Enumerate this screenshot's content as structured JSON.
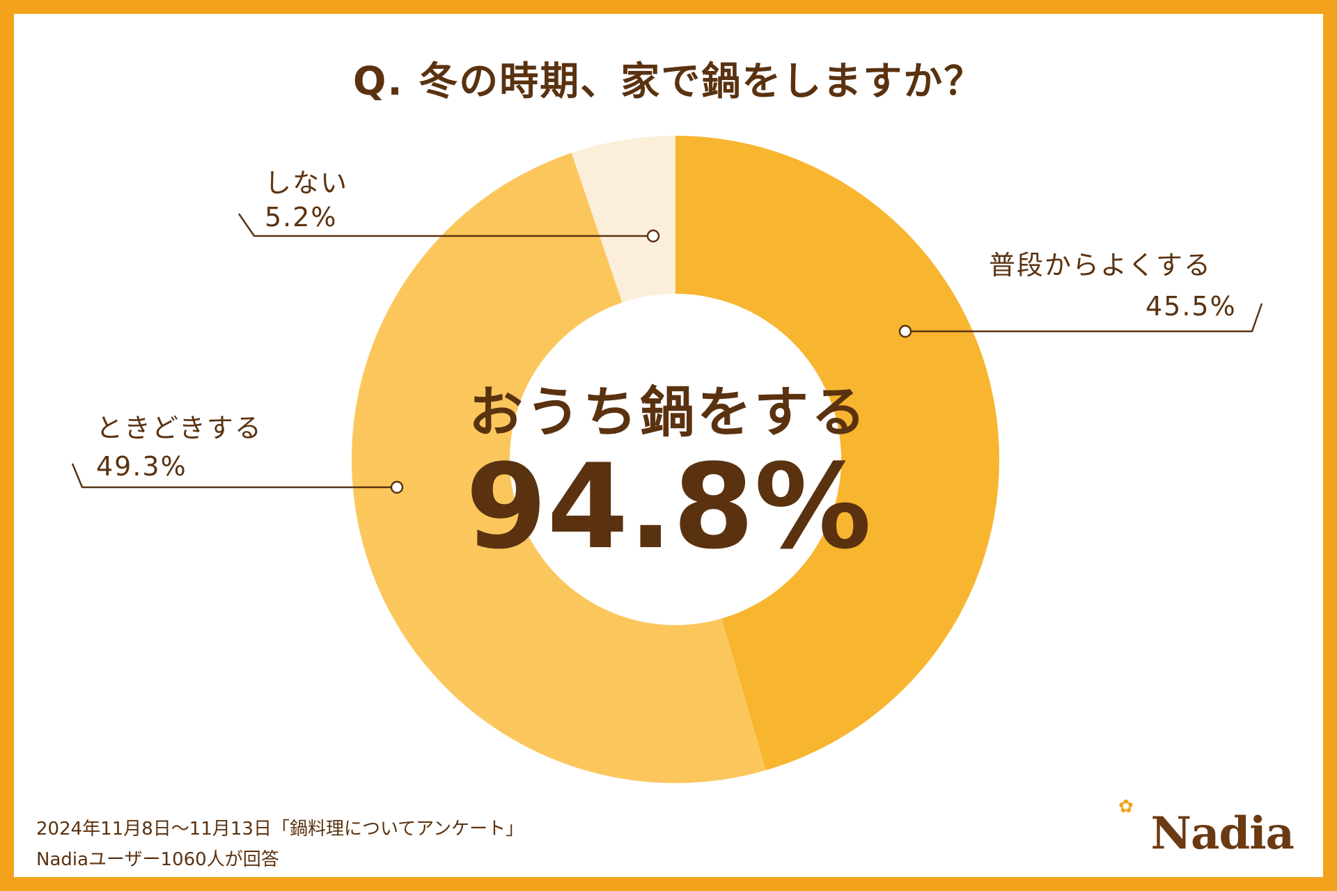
{
  "title": "Q. 冬の時期、家で鍋をしますか？",
  "center": {
    "label": "おうち鍋をする",
    "value": "94.8%"
  },
  "colors": {
    "border": "#f3a31b",
    "text": "#5a3210",
    "slice_often": "#f8b52f",
    "slice_sometimes": "#fbc75d",
    "slice_no": "#fbefdb"
  },
  "chart_data": {
    "type": "pie",
    "donut": true,
    "title": "Q. 冬の時期、家で鍋をしますか？",
    "center_label": "おうち鍋をする",
    "center_value": "94.8%",
    "slices": [
      {
        "label": "普段からよくする",
        "value": 45.5,
        "value_label": "45.5%",
        "color": "#f8b52f"
      },
      {
        "label": "ときどきする",
        "value": 49.3,
        "value_label": "49.3%",
        "color": "#fbc75d"
      },
      {
        "label": "しない",
        "value": 5.2,
        "value_label": "5.2%",
        "color": "#fbefdb"
      }
    ]
  },
  "footer": {
    "line1": "2024年11月8日〜11月13日「鍋料理についてアンケート」",
    "line2": "Nadiaユーザー1060人が回答"
  },
  "logo": {
    "text": "Nadia",
    "icon": "flower-icon"
  }
}
